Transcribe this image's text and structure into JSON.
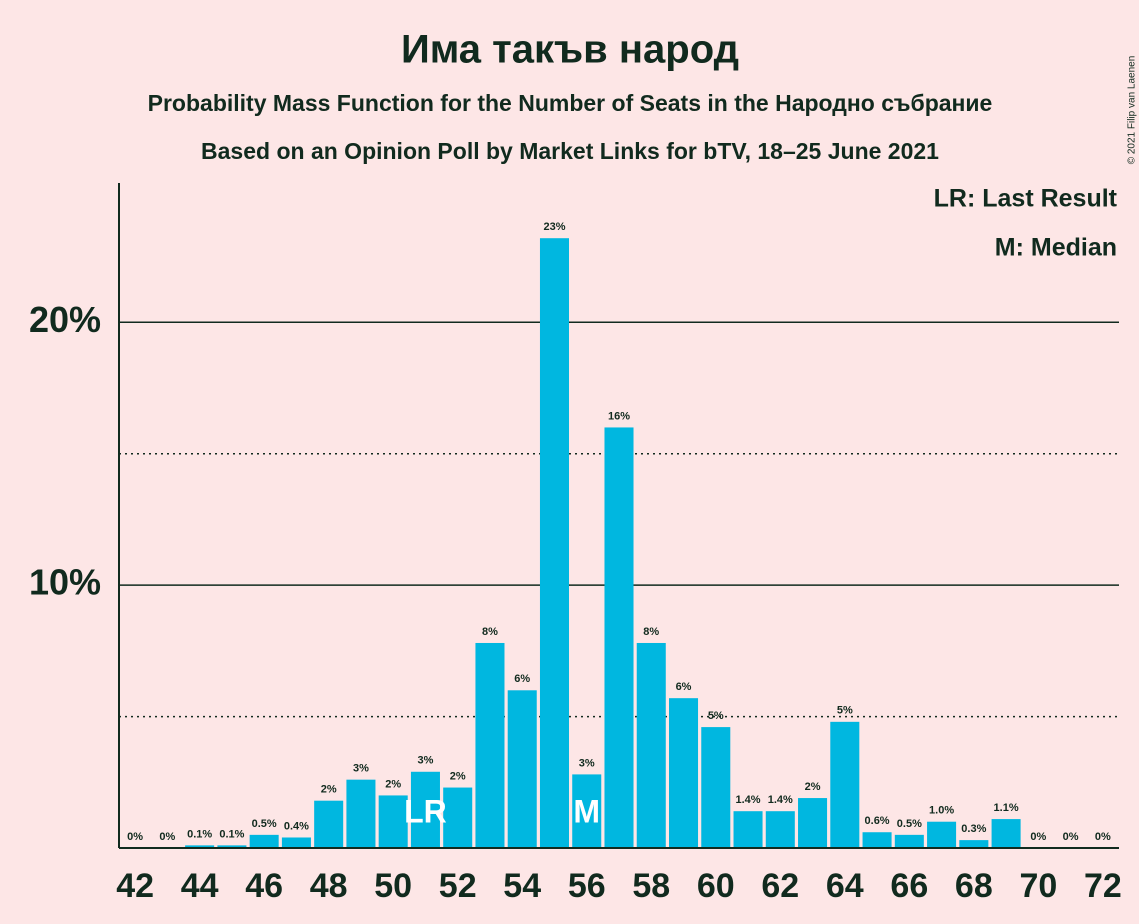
{
  "chart_data": {
    "type": "bar",
    "title": "Има такъв народ",
    "subtitle": "Probability Mass Function for the Number of Seats in the Народно събрание",
    "subtitle2": "Based on an Opinion Poll by Market Links for bTV, 18–25 June 2021",
    "copyright": "© 2021 Filip van Laenen",
    "legend": [
      "LR: Last Result",
      "M: Median"
    ],
    "color": "#00b7e0",
    "x": [
      42,
      43,
      44,
      45,
      46,
      47,
      48,
      49,
      50,
      51,
      52,
      53,
      54,
      55,
      56,
      57,
      58,
      59,
      60,
      61,
      62,
      63,
      64,
      65,
      66,
      67,
      68,
      69,
      70,
      71,
      72
    ],
    "values": [
      0,
      0,
      0.1,
      0.1,
      0.5,
      0.4,
      1.8,
      2.6,
      2.0,
      2.9,
      2.3,
      7.8,
      6.0,
      23.2,
      2.8,
      16.0,
      7.8,
      5.7,
      4.6,
      1.4,
      1.4,
      1.9,
      4.8,
      0.6,
      0.5,
      1.0,
      0.3,
      1.1,
      0,
      0,
      0
    ],
    "value_labels": [
      "0%",
      "0%",
      "0.1%",
      "0.1%",
      "0.5%",
      "0.4%",
      "2%",
      "3%",
      "2%",
      "3%",
      "2%",
      "8%",
      "6%",
      "23%",
      "3%",
      "16%",
      "8%",
      "6%",
      "5%",
      "1.4%",
      "1.4%",
      "2%",
      "5%",
      "0.6%",
      "0.5%",
      "1.0%",
      "0.3%",
      "1.1%",
      "0%",
      "0%",
      "0%"
    ],
    "annotations": [
      {
        "x": 51,
        "text": "LR"
      },
      {
        "x": 56,
        "text": "M"
      }
    ],
    "xlim": [
      41.5,
      72.5
    ],
    "xticks": [
      42,
      44,
      46,
      48,
      50,
      52,
      54,
      56,
      58,
      60,
      62,
      64,
      66,
      68,
      70,
      72
    ],
    "ylim": [
      0,
      25.3
    ],
    "yticks": [
      {
        "value": 10,
        "label": "10%"
      },
      {
        "value": 20,
        "label": "20%"
      }
    ],
    "minor_yticks": [
      5,
      15
    ],
    "grid": true
  }
}
